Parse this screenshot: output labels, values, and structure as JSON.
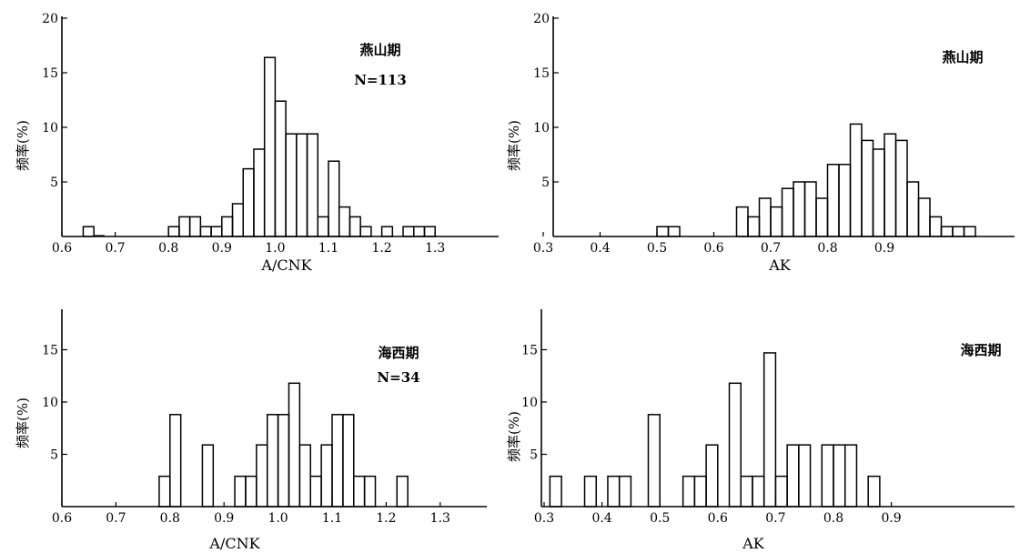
{
  "chart_data": [
    {
      "id": "acnk-yanshan",
      "type": "bar",
      "annotation": "燕山期",
      "n_label": "N=113",
      "xlabel": "A/CNK",
      "ylabel": "频率(%)",
      "xlim": [
        0.6,
        1.42
      ],
      "ylim": [
        0,
        20
      ],
      "xticks": [
        "0.6",
        "0.7",
        "0.8",
        "0.9",
        "1.0",
        "1.1",
        "1.2",
        "1.3"
      ],
      "yticks": [
        "5",
        "10",
        "15",
        "20"
      ],
      "bin_width": 0.02,
      "bins": [
        {
          "x0": 0.64,
          "value": 0.9
        },
        {
          "x0": 0.66,
          "value": 0.0
        },
        {
          "x0": 0.8,
          "value": 0.9
        },
        {
          "x0": 0.82,
          "value": 1.8
        },
        {
          "x0": 0.84,
          "value": 1.8
        },
        {
          "x0": 0.86,
          "value": 0.9
        },
        {
          "x0": 0.88,
          "value": 0.9
        },
        {
          "x0": 0.9,
          "value": 1.8
        },
        {
          "x0": 0.92,
          "value": 3.0
        },
        {
          "x0": 0.94,
          "value": 6.2
        },
        {
          "x0": 0.96,
          "value": 8.0
        },
        {
          "x0": 0.98,
          "value": 16.4
        },
        {
          "x0": 1.0,
          "value": 12.4
        },
        {
          "x0": 1.02,
          "value": 9.4
        },
        {
          "x0": 1.04,
          "value": 9.4
        },
        {
          "x0": 1.06,
          "value": 9.4
        },
        {
          "x0": 1.08,
          "value": 1.8
        },
        {
          "x0": 1.1,
          "value": 6.9
        },
        {
          "x0": 1.12,
          "value": 2.7
        },
        {
          "x0": 1.14,
          "value": 1.8
        },
        {
          "x0": 1.16,
          "value": 0.9
        },
        {
          "x0": 1.2,
          "value": 0.9
        },
        {
          "x0": 1.24,
          "value": 0.9
        },
        {
          "x0": 1.26,
          "value": 0.9
        },
        {
          "x0": 1.28,
          "value": 0.9
        }
      ]
    },
    {
      "id": "ak-yanshan",
      "type": "bar",
      "annotation": "燕山期",
      "xlabel": "AK",
      "ylabel": "频率(%)",
      "xlim": [
        0.3,
        1.12
      ],
      "ylim": [
        0,
        20
      ],
      "xticks": [
        "0.3",
        "0.4",
        "0.5",
        "0.6",
        "0.7",
        "0.8",
        "0.9"
      ],
      "yticks": [
        "5",
        "10",
        "15",
        "20"
      ],
      "bin_width": 0.02,
      "bins": [
        {
          "x0": 0.5,
          "value": 0.9
        },
        {
          "x0": 0.52,
          "value": 0.9
        },
        {
          "x0": 0.64,
          "value": 2.7
        },
        {
          "x0": 0.66,
          "value": 1.8
        },
        {
          "x0": 0.68,
          "value": 3.5
        },
        {
          "x0": 0.7,
          "value": 2.7
        },
        {
          "x0": 0.72,
          "value": 4.4
        },
        {
          "x0": 0.74,
          "value": 5.0
        },
        {
          "x0": 0.76,
          "value": 5.0
        },
        {
          "x0": 0.78,
          "value": 3.5
        },
        {
          "x0": 0.8,
          "value": 6.6
        },
        {
          "x0": 0.82,
          "value": 6.6
        },
        {
          "x0": 0.84,
          "value": 10.3
        },
        {
          "x0": 0.86,
          "value": 8.8
        },
        {
          "x0": 0.88,
          "value": 8.0
        },
        {
          "x0": 0.9,
          "value": 9.4
        },
        {
          "x0": 0.92,
          "value": 8.8
        },
        {
          "x0": 0.94,
          "value": 5.0
        },
        {
          "x0": 0.96,
          "value": 3.5
        },
        {
          "x0": 0.98,
          "value": 1.8
        },
        {
          "x0": 1.0,
          "value": 0.9
        },
        {
          "x0": 1.02,
          "value": 0.9
        },
        {
          "x0": 1.04,
          "value": 0.9
        }
      ]
    },
    {
      "id": "acnk-haixi",
      "type": "bar",
      "annotation": "海西期",
      "n_label": "N=34",
      "xlabel": "A/CNK",
      "ylabel": "频率(%)",
      "xlim": [
        0.6,
        1.36
      ],
      "ylim": [
        0,
        18
      ],
      "xticks": [
        "0.6",
        "0.7",
        "0.8",
        "0.9",
        "1.0",
        "1.1",
        "1.2",
        "1.3"
      ],
      "yticks": [
        "5",
        "10",
        "15"
      ],
      "bin_width": 0.02,
      "bins": [
        {
          "x0": 0.78,
          "value": 2.9
        },
        {
          "x0": 0.8,
          "value": 8.8
        },
        {
          "x0": 0.86,
          "value": 5.9
        },
        {
          "x0": 0.92,
          "value": 2.9
        },
        {
          "x0": 0.94,
          "value": 2.9
        },
        {
          "x0": 0.96,
          "value": 5.9
        },
        {
          "x0": 0.98,
          "value": 8.8
        },
        {
          "x0": 1.0,
          "value": 8.8
        },
        {
          "x0": 1.02,
          "value": 11.8
        },
        {
          "x0": 1.04,
          "value": 5.9
        },
        {
          "x0": 1.06,
          "value": 2.9
        },
        {
          "x0": 1.08,
          "value": 5.9
        },
        {
          "x0": 1.1,
          "value": 8.8
        },
        {
          "x0": 1.12,
          "value": 8.8
        },
        {
          "x0": 1.14,
          "value": 2.9
        },
        {
          "x0": 1.16,
          "value": 2.9
        },
        {
          "x0": 1.22,
          "value": 2.9
        }
      ]
    },
    {
      "id": "ak-haixi",
      "type": "bar",
      "annotation": "海西期",
      "xlabel": "AK",
      "ylabel": "频率(%)",
      "xlim": [
        0.3,
        1.12
      ],
      "ylim": [
        0,
        17
      ],
      "xticks": [
        "0.3",
        "0.4",
        "0.5",
        "0.6",
        "0.7",
        "0.8",
        "0.9"
      ],
      "yticks": [
        "5",
        "10",
        "15"
      ],
      "bin_width": 0.02,
      "bins": [
        {
          "x0": 0.31,
          "value": 2.9
        },
        {
          "x0": 0.37,
          "value": 2.9
        },
        {
          "x0": 0.41,
          "value": 2.9
        },
        {
          "x0": 0.43,
          "value": 2.9
        },
        {
          "x0": 0.48,
          "value": 8.8
        },
        {
          "x0": 0.54,
          "value": 2.9
        },
        {
          "x0": 0.56,
          "value": 2.9
        },
        {
          "x0": 0.58,
          "value": 5.9
        },
        {
          "x0": 0.62,
          "value": 11.8
        },
        {
          "x0": 0.64,
          "value": 2.9
        },
        {
          "x0": 0.66,
          "value": 2.9
        },
        {
          "x0": 0.68,
          "value": 14.7
        },
        {
          "x0": 0.7,
          "value": 2.9
        },
        {
          "x0": 0.72,
          "value": 5.9
        },
        {
          "x0": 0.74,
          "value": 5.9
        },
        {
          "x0": 0.78,
          "value": 5.9
        },
        {
          "x0": 0.8,
          "value": 5.9
        },
        {
          "x0": 0.82,
          "value": 5.9
        },
        {
          "x0": 0.86,
          "value": 2.9
        }
      ]
    }
  ]
}
